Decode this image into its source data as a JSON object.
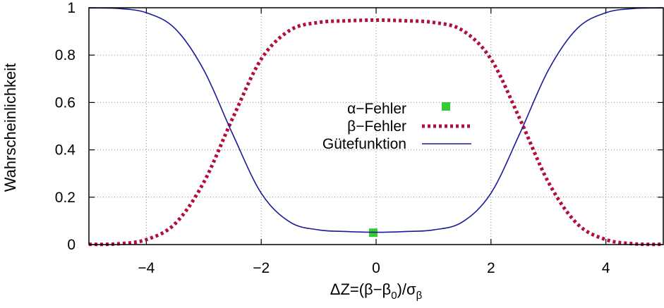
{
  "chart_data": {
    "type": "line",
    "title": "",
    "xlabel": "ΔZ=(β−β0)/σβ",
    "xlabel_parts": {
      "prefix": "ΔZ=(β−β",
      "sub0": "0",
      "mid": ")/σ",
      "subb": "β"
    },
    "ylabel": "Wahrscheinlichkeit",
    "xlim": [
      -5,
      5
    ],
    "ylim": [
      0,
      1
    ],
    "x_ticks": [
      -4,
      -2,
      0,
      2,
      4
    ],
    "x_tick_labels": [
      "−4",
      "−2",
      "0",
      "2",
      "4"
    ],
    "y_ticks": [
      0,
      0.2,
      0.4,
      0.6,
      0.8,
      1
    ],
    "y_tick_labels": [
      "0",
      "0.2",
      "0.4",
      "0.6",
      "0.8",
      "1"
    ],
    "grid": true,
    "legend_position": "center",
    "x": [
      -5,
      -4.5,
      -4,
      -3.5,
      -3,
      -2.5,
      -2,
      -1.5,
      -1,
      -0.5,
      0,
      0.5,
      1,
      1.5,
      2,
      2.5,
      3,
      3.5,
      4,
      4.5,
      5
    ],
    "series": [
      {
        "name": "α−Fehler",
        "style": "point",
        "color": "#33cc33",
        "points": [
          {
            "x": -0.05,
            "y": 0.05
          }
        ]
      },
      {
        "name": "β−Fehler",
        "style": "dotted",
        "color": "#b0103a",
        "values": [
          0.001,
          0.003,
          0.021,
          0.088,
          0.263,
          0.532,
          0.783,
          0.905,
          0.938,
          0.945,
          0.948,
          0.945,
          0.938,
          0.905,
          0.783,
          0.532,
          0.263,
          0.088,
          0.021,
          0.003,
          0.001
        ]
      },
      {
        "name": "Gütefunktion",
        "style": "solid",
        "color": "#1a1a99",
        "values": [
          0.999,
          0.997,
          0.979,
          0.912,
          0.737,
          0.468,
          0.217,
          0.095,
          0.062,
          0.055,
          0.052,
          0.055,
          0.062,
          0.095,
          0.217,
          0.468,
          0.737,
          0.912,
          0.979,
          0.997,
          0.999
        ]
      }
    ]
  }
}
